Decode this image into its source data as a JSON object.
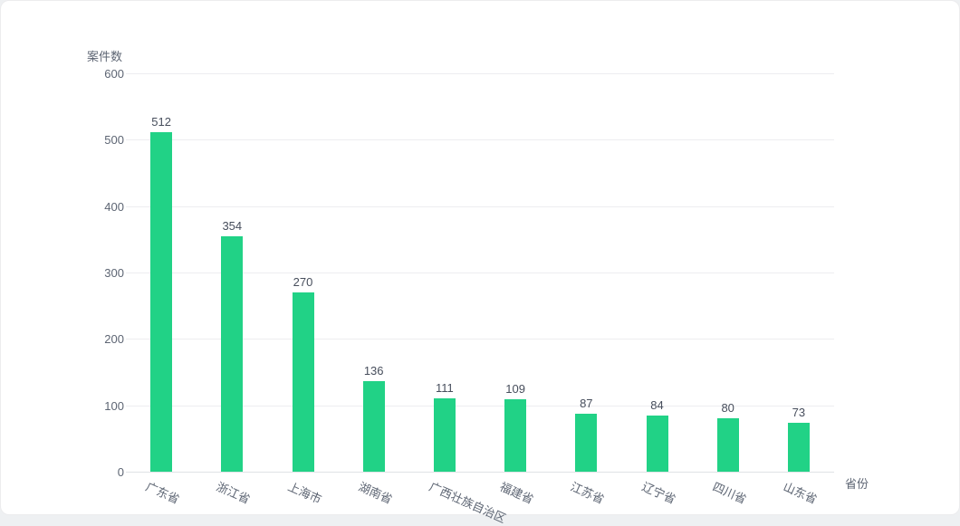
{
  "chart_data": {
    "type": "bar",
    "title": "",
    "ylabel": "案件数",
    "xlabel": "省份",
    "categories": [
      "广东省",
      "浙江省",
      "上海市",
      "湖南省",
      "广西壮族自治区",
      "福建省",
      "江苏省",
      "辽宁省",
      "四川省",
      "山东省"
    ],
    "values": [
      512,
      354,
      270,
      136,
      111,
      109,
      87,
      84,
      80,
      73
    ],
    "ylim": [
      0,
      600
    ],
    "yticks": [
      0,
      100,
      200,
      300,
      400,
      500,
      600
    ],
    "grid": true,
    "legend_position": "none",
    "bar_color": "#21d286"
  },
  "colors": {
    "bar": "#21d286",
    "gridline": "#ededf0",
    "axis_line": "#e0e2e6",
    "tick_text": "#5d6573",
    "value_text": "#474e5c",
    "card_bg": "#ffffff",
    "page_bg": "#eef0f2"
  }
}
